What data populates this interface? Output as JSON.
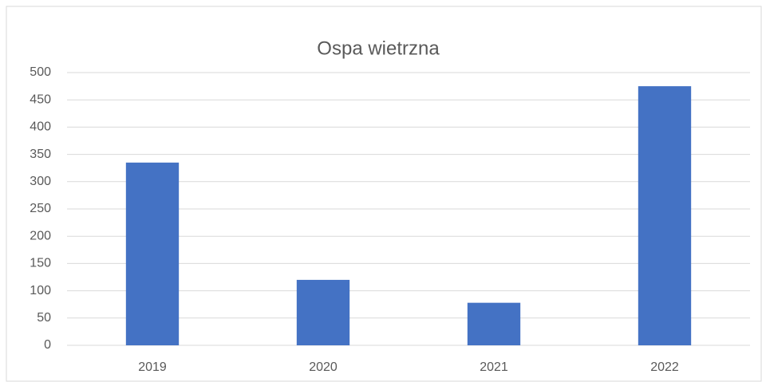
{
  "chart_data": {
    "type": "bar",
    "title": "Ospa wietrzna",
    "categories": [
      "2019",
      "2020",
      "2021",
      "2022"
    ],
    "values": [
      335,
      120,
      78,
      475
    ],
    "color": "#4472c4",
    "ylim": [
      0,
      500
    ],
    "yticks": [
      0,
      50,
      100,
      150,
      200,
      250,
      300,
      350,
      400,
      450,
      500
    ],
    "grid": true
  }
}
